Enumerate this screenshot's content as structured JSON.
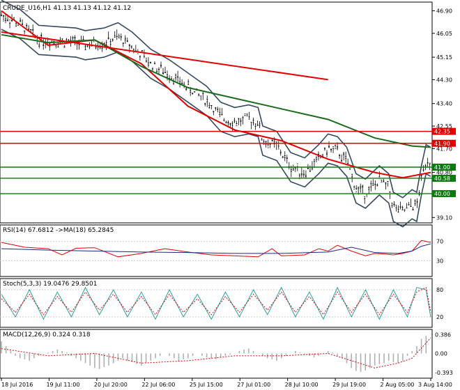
{
  "colors": {
    "up": "#000000",
    "ma_red": "#e00000",
    "ma_green": "#1a6b1a",
    "band": "#34495e",
    "level_red": "#e00000",
    "level_green": "#0a7a0a",
    "rsi": "#e00000",
    "rsi_ma": "#1a2a80",
    "stoch_main": "#2aa0a0",
    "stoch_signal": "#e00000",
    "macd_hist": "#b0b0b0",
    "macd_signal": "#e00000"
  },
  "chart_data": [
    {
      "type": "line",
      "title": "CRUDE_U16,H1  41.13 41.13 41.12 41.12",
      "x_labels": [
        "18 Jul 2016",
        "19 Jul 11:00",
        "20 Jul 20:00",
        "22 Jul 06:00",
        "25 Jul 15:00",
        "27 Jul 01:00",
        "28 Jul 10:00",
        "29 Jul 19:00",
        "2 Aug 05:00",
        "3 Aug 14:00"
      ],
      "y_ticks": [
        "46.90",
        "46.05",
        "45.15",
        "44.30",
        "43.40",
        "42.55",
        "41.70",
        "40.80",
        "39.10"
      ],
      "ylim": [
        38.95,
        47.15
      ],
      "horizontal_levels": [
        {
          "value": 42.35,
          "label": "42.35",
          "color": "red"
        },
        {
          "value": 41.9,
          "label": "41.90",
          "color": "red"
        },
        {
          "value": 41.0,
          "label": "41.00",
          "color": "green"
        },
        {
          "value": 40.58,
          "label": "40.58",
          "color": "green"
        },
        {
          "value": 40.0,
          "label": "40.00",
          "color": "green"
        }
      ],
      "price_path": [
        [
          0,
          46.75
        ],
        [
          4,
          46.4
        ],
        [
          8,
          45.8
        ],
        [
          12,
          45.75
        ],
        [
          16,
          45.7
        ],
        [
          18,
          45.6
        ],
        [
          22,
          45.7
        ],
        [
          25,
          45.9
        ],
        [
          28,
          45.55
        ],
        [
          32,
          44.9
        ],
        [
          36,
          44.5
        ],
        [
          40,
          44.0
        ],
        [
          44,
          43.5
        ],
        [
          47,
          42.9
        ],
        [
          50,
          42.7
        ],
        [
          53,
          42.8
        ],
        [
          55,
          42.7
        ],
        [
          56,
          42.0
        ],
        [
          59,
          41.8
        ],
        [
          62,
          41.0
        ],
        [
          65,
          40.8
        ],
        [
          68,
          41.3
        ],
        [
          70,
          41.7
        ],
        [
          72,
          41.6
        ],
        [
          74,
          41.2
        ],
        [
          76,
          40.2
        ],
        [
          78,
          40.0
        ],
        [
          81,
          40.5
        ],
        [
          83,
          40.2
        ],
        [
          84,
          39.5
        ],
        [
          86,
          39.3
        ],
        [
          88,
          39.6
        ],
        [
          89,
          39.5
        ],
        [
          90,
          40.5
        ],
        [
          91,
          41.3
        ],
        [
          92,
          41.2
        ]
      ],
      "series": [
        {
          "name": "MA fast (red)",
          "values": [
            [
              0,
              46.9
            ],
            [
              10,
              45.6
            ],
            [
              20,
              45.8
            ],
            [
              30,
              44.9
            ],
            [
              40,
              43.3
            ],
            [
              50,
              42.4
            ],
            [
              60,
              42.0
            ],
            [
              70,
              41.3
            ],
            [
              80,
              40.8
            ],
            [
              86,
              40.6
            ],
            [
              92,
              40.8
            ]
          ]
        },
        {
          "name": "MA slow (green)",
          "values": [
            [
              0,
              46.0
            ],
            [
              10,
              45.7
            ],
            [
              20,
              45.8
            ],
            [
              30,
              44.8
            ],
            [
              40,
              44.0
            ],
            [
              50,
              43.6
            ],
            [
              60,
              43.2
            ],
            [
              70,
              42.8
            ],
            [
              80,
              42.1
            ],
            [
              88,
              41.8
            ],
            [
              92,
              41.75
            ]
          ]
        },
        {
          "name": "Trend line (red)",
          "values": [
            [
              0,
              46.1
            ],
            [
              70,
              44.3
            ]
          ]
        }
      ]
    },
    {
      "type": "line",
      "title": "RSI(14) 67.6812  ->MA(18) 65.2845",
      "y_ticks": [
        "70",
        "30"
      ],
      "ylim": [
        0,
        100
      ],
      "series": [
        {
          "name": "RSI(14)",
          "values": [
            [
              0,
              68
            ],
            [
              5,
              58
            ],
            [
              10,
              55
            ],
            [
              13,
              42
            ],
            [
              16,
              56
            ],
            [
              20,
              57
            ],
            [
              25,
              38
            ],
            [
              30,
              45
            ],
            [
              35,
              55
            ],
            [
              40,
              48
            ],
            [
              45,
              42
            ],
            [
              50,
              40
            ],
            [
              55,
              38
            ],
            [
              58,
              55
            ],
            [
              60,
              40
            ],
            [
              65,
              42
            ],
            [
              68,
              55
            ],
            [
              70,
              50
            ],
            [
              72,
              62
            ],
            [
              75,
              50
            ],
            [
              78,
              40
            ],
            [
              80,
              45
            ],
            [
              82,
              44
            ],
            [
              84,
              42
            ],
            [
              86,
              45
            ],
            [
              88,
              50
            ],
            [
              90,
              72
            ],
            [
              92,
              68
            ]
          ]
        },
        {
          "name": "MA(18)",
          "values": [
            [
              0,
              55
            ],
            [
              10,
              52
            ],
            [
              20,
              50
            ],
            [
              30,
              48
            ],
            [
              40,
              47
            ],
            [
              50,
              45
            ],
            [
              60,
              45
            ],
            [
              70,
              48
            ],
            [
              75,
              58
            ],
            [
              80,
              47
            ],
            [
              85,
              45
            ],
            [
              88,
              50
            ],
            [
              90,
              60
            ],
            [
              92,
              65
            ]
          ]
        }
      ]
    },
    {
      "type": "line",
      "title": "Stoch(5,3,3) 19.0476 29.8501",
      "y_ticks": [
        "80",
        "20"
      ],
      "ylim": [
        0,
        100
      ],
      "series": [
        {
          "name": "Main %K",
          "values": [
            [
              0,
              70
            ],
            [
              3,
              20
            ],
            [
              6,
              80
            ],
            [
              9,
              15
            ],
            [
              12,
              75
            ],
            [
              15,
              20
            ],
            [
              18,
              85
            ],
            [
              21,
              25
            ],
            [
              24,
              80
            ],
            [
              27,
              20
            ],
            [
              30,
              75
            ],
            [
              33,
              15
            ],
            [
              36,
              80
            ],
            [
              39,
              20
            ],
            [
              42,
              70
            ],
            [
              45,
              15
            ],
            [
              48,
              75
            ],
            [
              51,
              20
            ],
            [
              54,
              80
            ],
            [
              57,
              25
            ],
            [
              60,
              85
            ],
            [
              63,
              20
            ],
            [
              66,
              75
            ],
            [
              69,
              15
            ],
            [
              72,
              85
            ],
            [
              75,
              20
            ],
            [
              78,
              80
            ],
            [
              81,
              15
            ],
            [
              84,
              80
            ],
            [
              87,
              20
            ],
            [
              89,
              85
            ],
            [
              91,
              80
            ],
            [
              92,
              19
            ]
          ]
        },
        {
          "name": "Signal %D",
          "values": [
            [
              0,
              60
            ],
            [
              3,
              30
            ],
            [
              6,
              70
            ],
            [
              9,
              25
            ],
            [
              12,
              65
            ],
            [
              15,
              30
            ],
            [
              18,
              75
            ],
            [
              21,
              35
            ],
            [
              24,
              70
            ],
            [
              27,
              30
            ],
            [
              30,
              65
            ],
            [
              33,
              25
            ],
            [
              36,
              70
            ],
            [
              39,
              30
            ],
            [
              42,
              60
            ],
            [
              45,
              25
            ],
            [
              48,
              65
            ],
            [
              51,
              30
            ],
            [
              54,
              70
            ],
            [
              57,
              35
            ],
            [
              60,
              75
            ],
            [
              63,
              30
            ],
            [
              66,
              65
            ],
            [
              69,
              25
            ],
            [
              72,
              75
            ],
            [
              75,
              30
            ],
            [
              78,
              70
            ],
            [
              81,
              25
            ],
            [
              84,
              70
            ],
            [
              87,
              30
            ],
            [
              89,
              75
            ],
            [
              91,
              85
            ],
            [
              92,
              30
            ]
          ]
        }
      ]
    },
    {
      "type": "bar",
      "title": "MACD(12,26,9) 0.324 0.318",
      "y_ticks": [
        "0.386",
        "0.00",
        "-0.393"
      ],
      "ylim": [
        -0.48,
        0.45
      ],
      "histogram": [
        0.25,
        0.15,
        0.05,
        -0.05,
        -0.1,
        -0.12,
        -0.15,
        -0.1,
        -0.05,
        0.0,
        0.02,
        0.05,
        0.08,
        0.05,
        0.02,
        -0.05,
        -0.1,
        -0.15,
        -0.2,
        -0.25,
        -0.3,
        -0.32,
        -0.28,
        -0.25,
        -0.2,
        -0.15,
        -0.1,
        -0.15,
        -0.18,
        -0.22,
        -0.25,
        -0.2,
        -0.15,
        -0.1,
        -0.05,
        0.0,
        -0.05,
        -0.1,
        -0.15,
        -0.12,
        -0.1,
        -0.05,
        0.0,
        -0.05,
        -0.08,
        -0.1,
        -0.12,
        -0.08,
        -0.05,
        -0.02,
        0.0,
        0.05,
        0.08,
        0.1,
        0.05,
        0.0,
        -0.05,
        -0.1,
        -0.12,
        -0.15,
        -0.1,
        -0.05,
        0.0,
        0.05,
        0.02,
        -0.02,
        -0.05,
        -0.08,
        -0.05,
        0.0,
        0.05,
        0.02,
        -0.05,
        -0.1,
        -0.2,
        -0.3,
        -0.36,
        -0.38,
        -0.35,
        -0.3,
        -0.25,
        -0.22,
        -0.2,
        -0.15,
        -0.18,
        -0.2,
        -0.15,
        -0.05,
        0.05,
        0.15,
        0.3,
        0.36
      ],
      "signal": [
        [
          0,
          0.1
        ],
        [
          10,
          -0.05
        ],
        [
          20,
          0.0
        ],
        [
          30,
          -0.2
        ],
        [
          40,
          -0.15
        ],
        [
          50,
          -0.05
        ],
        [
          60,
          -0.05
        ],
        [
          70,
          0.0
        ],
        [
          75,
          -0.15
        ],
        [
          80,
          -0.3
        ],
        [
          85,
          -0.2
        ],
        [
          88,
          -0.1
        ],
        [
          92,
          0.32
        ]
      ]
    }
  ]
}
